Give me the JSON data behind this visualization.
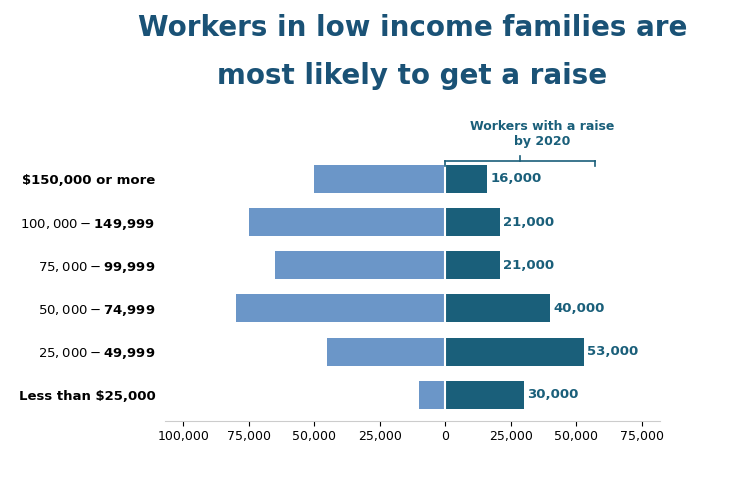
{
  "title_line1": "Workers in low income families are",
  "title_line2": "most likely to get a raise",
  "title_color": "#1a5276",
  "title_fontsize": 20,
  "categories": [
    "Less than $25,000",
    "$25,000 - $49,999",
    "$50,000 - $74,999",
    "$75,000 - $99,999",
    "$100,000 - $149,999",
    "$150,000 or more"
  ],
  "left_values": [
    -10000,
    -45000,
    -80000,
    -65000,
    -75000,
    -50000
  ],
  "right_values": [
    30000,
    53000,
    40000,
    21000,
    21000,
    16000
  ],
  "right_labels": [
    "30,000",
    "53,000",
    "40,000",
    "21,000",
    "21,000",
    "16,000"
  ],
  "left_color": "#6b96c8",
  "right_color": "#1a5f7a",
  "annotation_label": "Workers with a raise\nby 2020",
  "annotation_color": "#1a5f7a",
  "xlim_left": -107000,
  "xlim_right": 82000,
  "xticks": [
    -100000,
    -75000,
    -50000,
    -25000,
    0,
    25000,
    50000,
    75000
  ],
  "xtick_labels": [
    "100,000",
    "75,000",
    "50,000",
    "25,000",
    "0",
    "25,000",
    "50,000",
    "75,000"
  ],
  "background_color": "#ffffff",
  "bar_height": 0.65
}
